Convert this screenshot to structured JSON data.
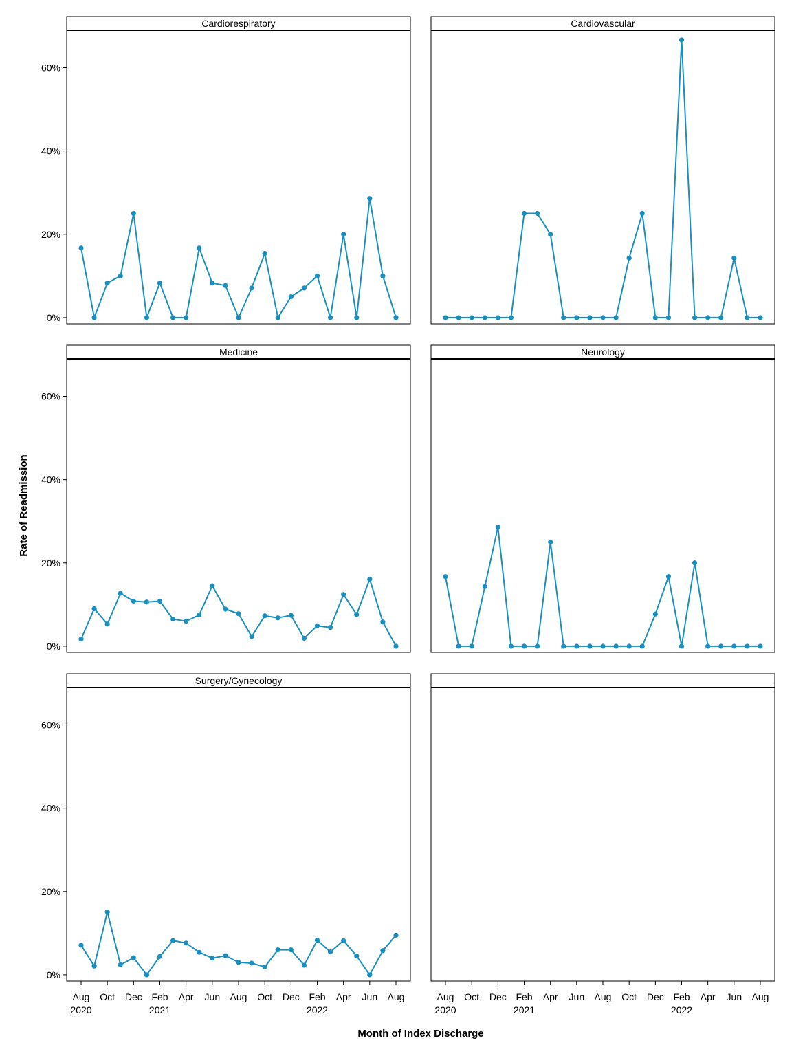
{
  "chart_data": {
    "type": "line",
    "xlabel": "Month of Index Discharge",
    "ylabel": "Rate of Readmission",
    "ylim": [
      -0.015,
      0.69
    ],
    "y_ticks": [
      "0%",
      "20%",
      "40%",
      "60%"
    ],
    "y_tick_values": [
      0,
      0.2,
      0.4,
      0.6
    ],
    "months": [
      "2020-08",
      "2020-09",
      "2020-10",
      "2020-11",
      "2020-12",
      "2021-01",
      "2021-02",
      "2021-03",
      "2021-04",
      "2021-05",
      "2021-06",
      "2021-07",
      "2021-08",
      "2021-09",
      "2021-10",
      "2021-11",
      "2021-12",
      "2022-01",
      "2022-02",
      "2022-03",
      "2022-04",
      "2022-05",
      "2022-06",
      "2022-07",
      "2022-08"
    ],
    "x_ticks": [
      {
        "month": "2020-08",
        "label": "Aug",
        "year": "2020"
      },
      {
        "month": "2020-10",
        "label": "Oct",
        "year": ""
      },
      {
        "month": "2020-12",
        "label": "Dec",
        "year": ""
      },
      {
        "month": "2021-02",
        "label": "Feb",
        "year": "2021"
      },
      {
        "month": "2021-04",
        "label": "Apr",
        "year": ""
      },
      {
        "month": "2021-06",
        "label": "Jun",
        "year": ""
      },
      {
        "month": "2021-08",
        "label": "Aug",
        "year": ""
      },
      {
        "month": "2021-10",
        "label": "Oct",
        "year": ""
      },
      {
        "month": "2021-12",
        "label": "Dec",
        "year": ""
      },
      {
        "month": "2022-02",
        "label": "Feb",
        "year": "2022"
      },
      {
        "month": "2022-04",
        "label": "Apr",
        "year": ""
      },
      {
        "month": "2022-06",
        "label": "Jun",
        "year": ""
      },
      {
        "month": "2022-08",
        "label": "Aug",
        "year": ""
      }
    ],
    "line_color": "#1a8fbf",
    "grid": false,
    "panels": [
      {
        "title": "Cardiorespiratory",
        "values": [
          0.167,
          0.0,
          0.083,
          0.1,
          0.25,
          0.0,
          0.083,
          0.0,
          0.0,
          0.167,
          0.083,
          0.077,
          0.0,
          0.071,
          0.154,
          0.0,
          0.05,
          0.071,
          0.1,
          0.0,
          0.2,
          0.0,
          0.286,
          0.1,
          0.0
        ]
      },
      {
        "title": "Cardiovascular",
        "values": [
          0.0,
          0.0,
          0.0,
          0.0,
          0.0,
          0.0,
          0.25,
          0.25,
          0.2,
          0.0,
          0.0,
          0.0,
          0.0,
          0.0,
          0.143,
          0.25,
          0.0,
          0.0,
          0.667,
          0.0,
          0.0,
          0.0,
          0.143,
          0.0,
          0.0
        ]
      },
      {
        "title": "Medicine",
        "values": [
          0.017,
          0.09,
          0.053,
          0.127,
          0.108,
          0.106,
          0.108,
          0.065,
          0.06,
          0.075,
          0.145,
          0.089,
          0.078,
          0.023,
          0.073,
          0.068,
          0.074,
          0.019,
          0.049,
          0.045,
          0.124,
          0.076,
          0.161,
          0.058,
          0.0
        ]
      },
      {
        "title": "Neurology",
        "values": [
          0.167,
          0.0,
          0.0,
          0.143,
          0.286,
          0.0,
          0.0,
          0.0,
          0.25,
          0.0,
          0.0,
          0.0,
          0.0,
          0.0,
          0.0,
          0.0,
          0.077,
          0.167,
          0.0,
          0.2,
          0.0,
          0.0,
          0.0,
          0.0,
          0.0
        ]
      },
      {
        "title": "Surgery/Gynecology",
        "values": [
          0.071,
          0.021,
          0.151,
          0.024,
          0.041,
          0.0,
          0.044,
          0.082,
          0.076,
          0.054,
          0.04,
          0.046,
          0.03,
          0.028,
          0.019,
          0.06,
          0.06,
          0.023,
          0.083,
          0.055,
          0.082,
          0.045,
          0.0,
          0.058,
          0.095
        ]
      },
      {
        "title": "",
        "values": []
      }
    ]
  }
}
